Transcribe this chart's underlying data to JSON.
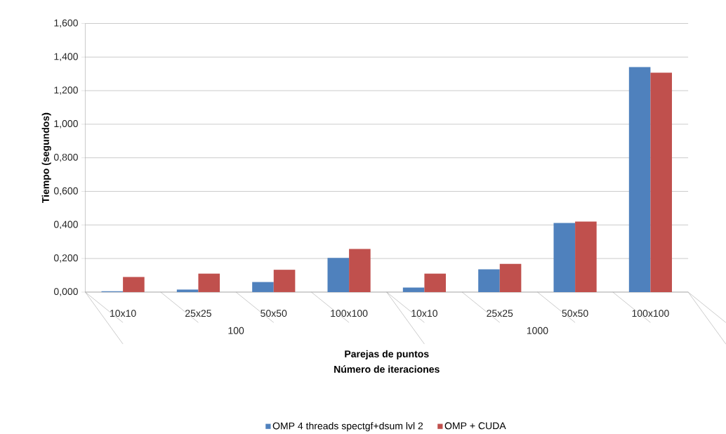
{
  "chart_data": {
    "type": "bar",
    "xlabel": "Parejas de puntos",
    "ylabel": "Tiempo (segundos)",
    "categories": [
      "10x10",
      "25x25",
      "50x50",
      "100x100",
      "10x10",
      "25x25",
      "50x50",
      "100x100"
    ],
    "series": [
      {
        "name": "OMP 4 threads spectgf+dsum lvl 2",
        "color": "#4f81bd",
        "values": [
          0.005,
          0.015,
          0.06,
          0.204,
          0.027,
          0.136,
          0.412,
          1.34
        ]
      },
      {
        "name": "OMP + CUDA",
        "color": "#c0504d",
        "values": [
          0.09,
          0.11,
          0.133,
          0.257,
          0.11,
          0.168,
          0.42,
          1.307
        ]
      }
    ],
    "ylim": [
      0,
      1.6
    ],
    "yticks": [
      {
        "value": 0,
        "label": "0,000"
      },
      {
        "value": 0.2,
        "label": "0,200"
      },
      {
        "value": 0.4,
        "label": "0,400"
      },
      {
        "value": 0.6,
        "label": "0,600"
      },
      {
        "value": 0.8,
        "label": "0,800"
      },
      {
        "value": 1.0,
        "label": "1,000"
      },
      {
        "value": 1.2,
        "label": "1,200"
      },
      {
        "value": 1.4,
        "label": "1,400"
      },
      {
        "value": 1.6,
        "label": "1,600"
      }
    ],
    "annotations": [
      "100",
      "1000",
      "Número de iteraciones"
    ],
    "grid": "y",
    "legend": "bottom"
  }
}
